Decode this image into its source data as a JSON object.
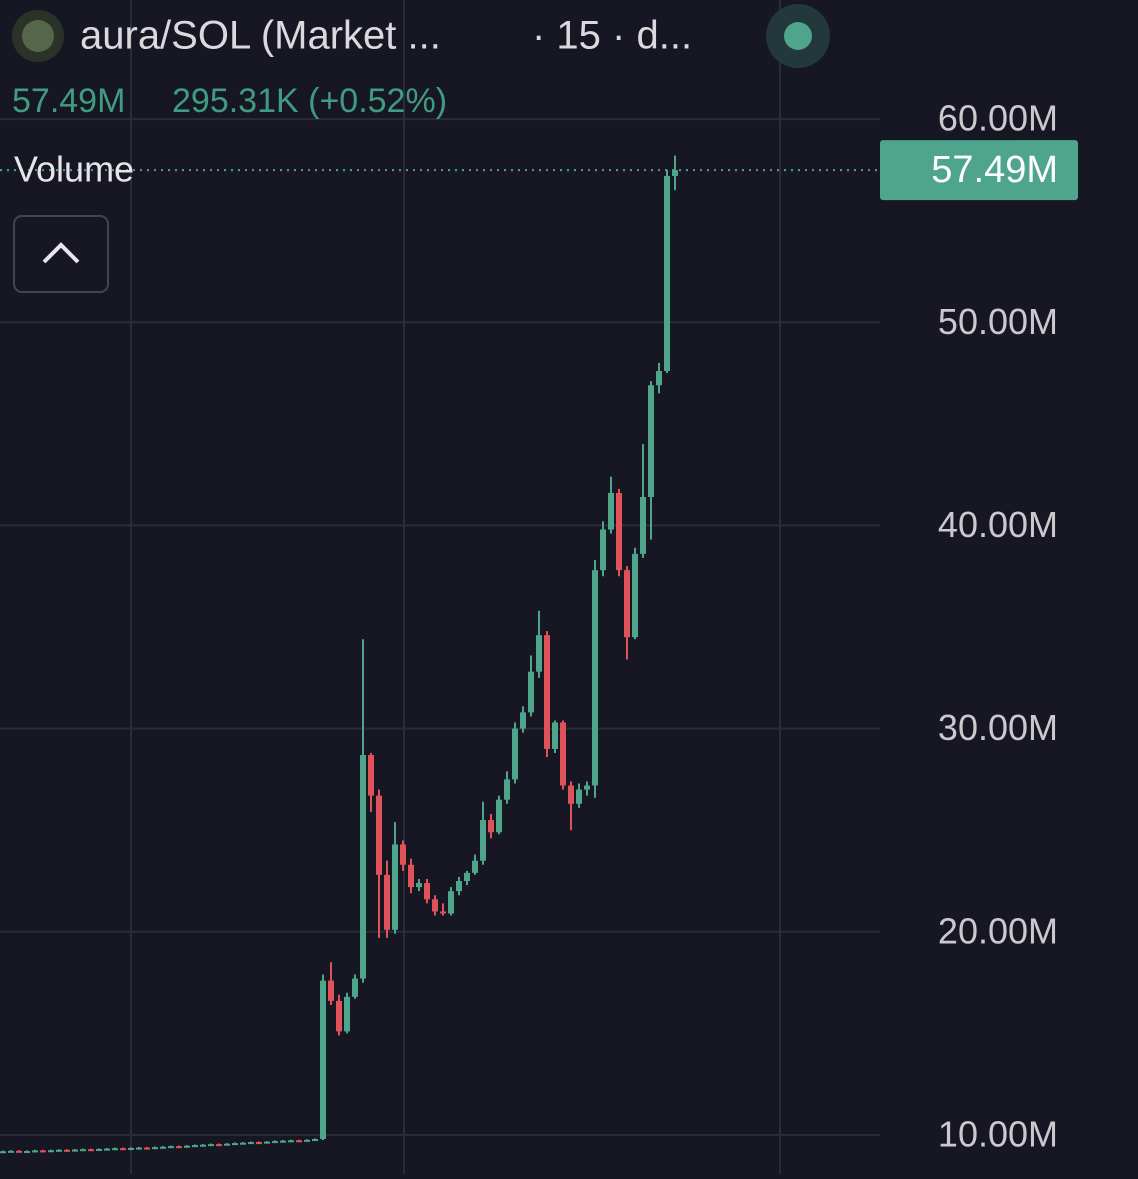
{
  "chart_data": {
    "type": "candlestick",
    "title": "aura/SOL (Market ...",
    "interval": "· 15 · d...",
    "change": "295.31K (+0.52%)",
    "indicator": "Volume",
    "current": {
      "value": 57.49,
      "label": "57.49M"
    },
    "up_color": "#4ea58b",
    "down_color": "#e0525a",
    "ylim": [
      8.08,
      65.86
    ],
    "yticks": [
      {
        "value": 10,
        "label": "10.00M"
      },
      {
        "value": 20,
        "label": "20.00M"
      },
      {
        "value": 30,
        "label": "30.00M"
      },
      {
        "value": 40,
        "label": "40.00M"
      },
      {
        "value": 50,
        "label": "50.00M"
      },
      {
        "value": 60,
        "label": "60.00M"
      }
    ],
    "grid": true,
    "candles": [
      [
        9.18,
        9.23,
        9.15,
        9.2
      ],
      [
        9.2,
        9.25,
        9.17,
        9.22
      ],
      [
        9.22,
        9.25,
        9.15,
        9.18
      ],
      [
        9.18,
        9.24,
        9.15,
        9.21
      ],
      [
        9.21,
        9.27,
        9.18,
        9.24
      ],
      [
        9.24,
        9.27,
        9.19,
        9.22
      ],
      [
        9.22,
        9.28,
        9.19,
        9.25
      ],
      [
        9.25,
        9.3,
        9.22,
        9.27
      ],
      [
        9.27,
        9.3,
        9.23,
        9.26
      ],
      [
        9.26,
        9.31,
        9.23,
        9.28
      ],
      [
        9.28,
        9.33,
        9.25,
        9.3
      ],
      [
        9.3,
        9.33,
        9.26,
        9.29
      ],
      [
        9.29,
        9.34,
        9.26,
        9.31
      ],
      [
        9.31,
        9.36,
        9.28,
        9.33
      ],
      [
        9.33,
        9.38,
        9.3,
        9.35
      ],
      [
        9.35,
        9.38,
        9.31,
        9.34
      ],
      [
        9.34,
        9.39,
        9.31,
        9.36
      ],
      [
        9.36,
        9.41,
        9.33,
        9.38
      ],
      [
        9.38,
        9.41,
        9.34,
        9.37
      ],
      [
        9.37,
        9.43,
        9.34,
        9.4
      ],
      [
        9.4,
        9.45,
        9.37,
        9.42
      ],
      [
        9.42,
        9.48,
        9.39,
        9.45
      ],
      [
        9.45,
        9.48,
        9.41,
        9.44
      ],
      [
        9.44,
        9.5,
        9.41,
        9.47
      ],
      [
        9.47,
        9.53,
        9.44,
        9.5
      ],
      [
        9.5,
        9.55,
        9.47,
        9.52
      ],
      [
        9.52,
        9.58,
        9.49,
        9.55
      ],
      [
        9.55,
        9.58,
        9.5,
        9.53
      ],
      [
        9.53,
        9.6,
        9.5,
        9.57
      ],
      [
        9.57,
        9.63,
        9.54,
        9.6
      ],
      [
        9.6,
        9.65,
        9.57,
        9.62
      ],
      [
        9.62,
        9.68,
        9.59,
        9.65
      ],
      [
        9.65,
        9.68,
        9.6,
        9.63
      ],
      [
        9.63,
        9.7,
        9.6,
        9.67
      ],
      [
        9.67,
        9.73,
        9.64,
        9.7
      ],
      [
        9.7,
        9.75,
        9.67,
        9.72
      ],
      [
        9.72,
        9.77,
        9.69,
        9.74
      ],
      [
        9.74,
        9.77,
        9.7,
        9.73
      ],
      [
        9.73,
        9.79,
        9.7,
        9.76
      ],
      [
        9.76,
        9.83,
        9.73,
        9.8
      ],
      [
        9.8,
        17.9,
        9.75,
        17.6
      ],
      [
        17.6,
        18.5,
        16.4,
        16.6
      ],
      [
        16.6,
        16.9,
        14.9,
        15.1
      ],
      [
        15.1,
        17.0,
        15.0,
        16.8
      ],
      [
        16.8,
        17.9,
        16.7,
        17.7
      ],
      [
        17.7,
        34.4,
        17.5,
        28.7
      ],
      [
        28.7,
        28.8,
        25.9,
        26.7
      ],
      [
        26.7,
        27.0,
        19.7,
        22.8
      ],
      [
        22.8,
        23.5,
        19.7,
        20.1
      ],
      [
        20.1,
        25.4,
        19.9,
        24.3
      ],
      [
        24.3,
        24.5,
        23.0,
        23.3
      ],
      [
        23.3,
        23.6,
        21.9,
        22.2
      ],
      [
        22.2,
        22.6,
        22.0,
        22.4
      ],
      [
        22.4,
        22.6,
        21.4,
        21.6
      ],
      [
        21.6,
        21.8,
        20.8,
        21.0
      ],
      [
        21.0,
        21.4,
        20.8,
        20.9
      ],
      [
        20.9,
        22.2,
        20.8,
        22.0
      ],
      [
        22.0,
        22.7,
        21.8,
        22.5
      ],
      [
        22.5,
        23.0,
        22.3,
        22.9
      ],
      [
        22.9,
        23.8,
        22.8,
        23.5
      ],
      [
        23.5,
        26.4,
        23.3,
        25.5
      ],
      [
        25.5,
        25.8,
        24.6,
        24.9
      ],
      [
        24.9,
        26.7,
        24.8,
        26.5
      ],
      [
        26.5,
        27.9,
        26.3,
        27.5
      ],
      [
        27.5,
        30.3,
        27.3,
        30.0
      ],
      [
        30.0,
        31.1,
        29.8,
        30.8
      ],
      [
        30.8,
        33.6,
        30.6,
        32.8
      ],
      [
        32.8,
        35.8,
        32.5,
        34.6
      ],
      [
        34.6,
        34.8,
        28.6,
        29.0
      ],
      [
        29.0,
        30.4,
        28.8,
        30.3
      ],
      [
        30.3,
        30.4,
        27.0,
        27.2
      ],
      [
        27.2,
        27.4,
        25.0,
        26.3
      ],
      [
        26.3,
        27.3,
        26.1,
        27.0
      ],
      [
        27.0,
        27.4,
        26.7,
        27.2
      ],
      [
        27.2,
        38.3,
        26.6,
        37.8
      ],
      [
        37.8,
        40.2,
        37.5,
        39.8
      ],
      [
        39.8,
        42.4,
        39.6,
        41.6
      ],
      [
        41.6,
        41.8,
        37.5,
        37.8
      ],
      [
        37.8,
        38.0,
        33.4,
        34.5
      ],
      [
        34.5,
        38.9,
        34.4,
        38.6
      ],
      [
        38.6,
        44.0,
        38.4,
        41.4
      ],
      [
        41.4,
        47.1,
        39.3,
        46.9
      ],
      [
        46.9,
        48.0,
        46.5,
        47.6
      ],
      [
        47.6,
        57.5,
        47.5,
        57.2
      ],
      [
        57.2,
        58.2,
        56.5,
        57.49
      ]
    ]
  }
}
